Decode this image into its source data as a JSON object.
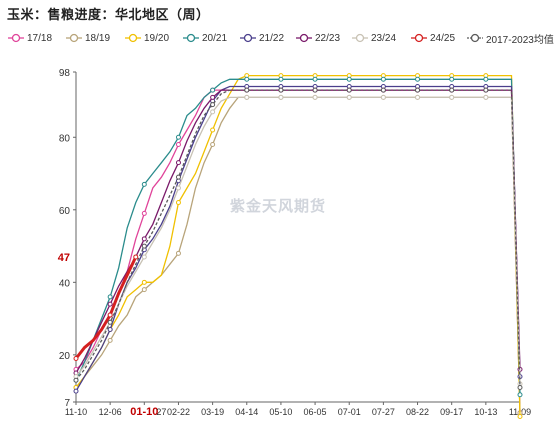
{
  "chart_data": {
    "type": "line",
    "title": "玉米：售粮进度：华北地区（周）",
    "y_ticks": [
      7,
      20,
      40,
      60,
      80,
      98
    ],
    "y_highlight": {
      "value": 47,
      "label": "47",
      "color": "#c00000"
    },
    "ylim": [
      7,
      98
    ],
    "x_ticks": [
      "11-10",
      "12-06",
      "01-10",
      "02-22",
      "03-19",
      "04-14",
      "05-10",
      "06-05",
      "07-01",
      "07-27",
      "08-22",
      "09-17",
      "10-13",
      "11-09"
    ],
    "x_highlight": {
      "label": "01-10",
      "color": "#c00000"
    },
    "x_partial_label": "27",
    "watermark": "紫金天风期货",
    "series": [
      {
        "name": "17/18",
        "color": "#e0449a",
        "marker": "circle",
        "values": [
          16,
          18,
          22,
          27,
          31,
          37,
          43,
          52,
          59,
          66,
          69,
          73,
          78,
          82,
          86,
          91,
          93,
          93,
          93,
          93,
          93,
          93,
          93,
          93,
          93,
          93,
          93,
          93,
          93,
          93,
          93,
          93,
          93,
          93,
          93,
          93,
          93,
          93,
          93,
          93,
          93,
          93,
          93,
          93,
          93,
          93,
          93,
          93,
          93,
          93,
          93,
          93,
          4
        ]
      },
      {
        "name": "18/19",
        "color": "#b8a47a",
        "marker": "circle",
        "values": [
          11,
          14,
          17,
          20,
          24,
          28,
          31,
          36,
          38,
          40,
          42,
          45,
          48,
          56,
          66,
          73,
          78,
          84,
          88,
          91,
          91,
          91,
          91,
          91,
          91,
          91,
          91,
          91,
          91,
          91,
          91,
          91,
          91,
          91,
          91,
          91,
          91,
          91,
          91,
          91,
          91,
          91,
          91,
          91,
          91,
          91,
          91,
          91,
          91,
          91,
          91,
          91,
          4
        ]
      },
      {
        "name": "19/20",
        "color": "#f0c000",
        "marker": "circle",
        "values": [
          11,
          14,
          18,
          22,
          27,
          31,
          36,
          38,
          40,
          40,
          42,
          50,
          62,
          66,
          70,
          76,
          82,
          88,
          92,
          96,
          97,
          97,
          97,
          97,
          97,
          97,
          97,
          97,
          97,
          97,
          97,
          97,
          97,
          97,
          97,
          97,
          97,
          97,
          97,
          97,
          97,
          97,
          97,
          97,
          97,
          97,
          97,
          97,
          97,
          97,
          97,
          97,
          3
        ]
      },
      {
        "name": "20/21",
        "color": "#2a8c8c",
        "marker": "circle",
        "values": [
          13,
          18,
          24,
          30,
          36,
          44,
          55,
          62,
          67,
          70,
          73,
          76,
          80,
          86,
          88,
          91,
          93,
          95,
          96,
          96,
          96,
          96,
          96,
          96,
          96,
          96,
          96,
          96,
          96,
          96,
          96,
          96,
          96,
          96,
          96,
          96,
          96,
          96,
          96,
          96,
          96,
          96,
          96,
          96,
          96,
          96,
          96,
          96,
          96,
          96,
          96,
          96,
          9
        ]
      },
      {
        "name": "21/22",
        "color": "#4a3f8c",
        "marker": "circle",
        "values": [
          10,
          14,
          18,
          22,
          27,
          34,
          40,
          44,
          49,
          52,
          56,
          61,
          68,
          74,
          80,
          85,
          90,
          93,
          94,
          94,
          94,
          94,
          94,
          94,
          94,
          94,
          94,
          94,
          94,
          94,
          94,
          94,
          94,
          94,
          94,
          94,
          94,
          94,
          94,
          94,
          94,
          94,
          94,
          94,
          94,
          94,
          94,
          94,
          94,
          94,
          94,
          94,
          14
        ]
      },
      {
        "name": "22/23",
        "color": "#7a1a6a",
        "marker": "circle",
        "values": [
          15,
          19,
          24,
          29,
          34,
          39,
          43,
          47,
          52,
          56,
          62,
          68,
          73,
          79,
          84,
          88,
          91,
          93,
          93,
          93,
          93,
          93,
          93,
          93,
          93,
          93,
          93,
          93,
          93,
          93,
          93,
          93,
          93,
          93,
          93,
          93,
          93,
          93,
          93,
          93,
          93,
          93,
          93,
          93,
          93,
          93,
          93,
          93,
          93,
          93,
          93,
          93,
          16
        ]
      },
      {
        "name": "23/24",
        "color": "#c8c2b4",
        "marker": "circle",
        "values": [
          14,
          17,
          21,
          25,
          29,
          34,
          39,
          43,
          47,
          51,
          55,
          60,
          66,
          72,
          78,
          83,
          87,
          90,
          91,
          91,
          91,
          91,
          91,
          91,
          91,
          91,
          91,
          91,
          91,
          91,
          91,
          91,
          91,
          91,
          91,
          91,
          91,
          91,
          91,
          91,
          91,
          91,
          91,
          91,
          91,
          91,
          91,
          91,
          91,
          91,
          91,
          91,
          12
        ]
      },
      {
        "name": "24/25",
        "color": "#d42020",
        "marker": "circle",
        "values": [
          19,
          22,
          24,
          27,
          31,
          37,
          42,
          47
        ]
      },
      {
        "name": "2017-2023均值",
        "color": "#5a5a5a",
        "marker": "circle",
        "dashed": true,
        "values": [
          13,
          16,
          20,
          24,
          29,
          34,
          40,
          45,
          50,
          54,
          59,
          64,
          69,
          75,
          81,
          86,
          89,
          92,
          93,
          93,
          93,
          93,
          93,
          93,
          93,
          93,
          93,
          93,
          93,
          93,
          93,
          93,
          93,
          93,
          93,
          93,
          93,
          93,
          93,
          93,
          93,
          93,
          93,
          93,
          93,
          93,
          93,
          93,
          93,
          93,
          93,
          93,
          11
        ]
      }
    ]
  }
}
